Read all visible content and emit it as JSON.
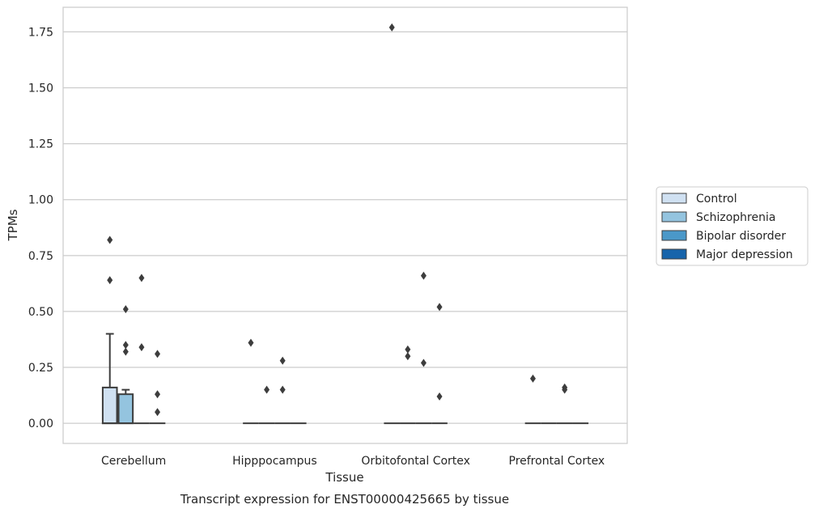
{
  "chart_data": {
    "type": "box",
    "title": "Transcript expression for ENST00000425665 by tissue",
    "xlabel": "Tissue",
    "ylabel": "TPMs",
    "ylim": [
      -0.09,
      1.86
    ],
    "yticks": [
      "0.00",
      "0.25",
      "0.50",
      "0.75",
      "1.00",
      "1.25",
      "1.50",
      "1.75"
    ],
    "grid": "horizontal",
    "legend_position": "right",
    "categories": [
      "Cerebellum",
      "Hipppocampus",
      "Orbitofontal Cortex",
      "Prefrontal Cortex"
    ],
    "series": [
      {
        "name": "Control",
        "color": "#d0e1f2",
        "boxes": [
          {
            "q1": 0,
            "median": 0,
            "q3": 0.16,
            "whislo": 0,
            "whishi": 0.4,
            "outliers": [
              0.82,
              0.64
            ]
          },
          {
            "q1": 0,
            "median": 0,
            "q3": 0,
            "whislo": 0,
            "whishi": 0,
            "outliers": [
              0.36
            ]
          },
          {
            "q1": 0,
            "median": 0,
            "q3": 0,
            "whislo": 0,
            "whishi": 0,
            "outliers": [
              1.77
            ]
          },
          {
            "q1": 0,
            "median": 0,
            "q3": 0,
            "whislo": 0,
            "whishi": 0,
            "outliers": [
              0.2
            ]
          }
        ]
      },
      {
        "name": "Schizophrenia",
        "color": "#94c4df",
        "boxes": [
          {
            "q1": 0,
            "median": 0,
            "q3": 0.13,
            "whislo": 0,
            "whishi": 0.15,
            "outliers": [
              0.51,
              0.35,
              0.32
            ]
          },
          {
            "q1": 0,
            "median": 0,
            "q3": 0,
            "whislo": 0,
            "whishi": 0,
            "outliers": [
              0.15
            ]
          },
          {
            "q1": 0,
            "median": 0,
            "q3": 0,
            "whislo": 0,
            "whishi": 0,
            "outliers": [
              0.33,
              0.3
            ]
          },
          {
            "q1": 0,
            "median": 0,
            "q3": 0,
            "whislo": 0,
            "whishi": 0,
            "outliers": []
          }
        ]
      },
      {
        "name": "Bipolar disorder",
        "color": "#4a98c9",
        "boxes": [
          {
            "q1": 0,
            "median": 0,
            "q3": 0,
            "whislo": 0,
            "whishi": 0,
            "outliers": [
              0.65,
              0.34
            ]
          },
          {
            "q1": 0,
            "median": 0,
            "q3": 0,
            "whislo": 0,
            "whishi": 0,
            "outliers": [
              0.28,
              0.15
            ]
          },
          {
            "q1": 0,
            "median": 0,
            "q3": 0,
            "whislo": 0,
            "whishi": 0,
            "outliers": [
              0.66,
              0.27
            ]
          },
          {
            "q1": 0,
            "median": 0,
            "q3": 0,
            "whislo": 0,
            "whishi": 0,
            "outliers": [
              0.16,
              0.15
            ]
          }
        ]
      },
      {
        "name": "Major depression",
        "color": "#1764ab",
        "boxes": [
          {
            "q1": 0,
            "median": 0,
            "q3": 0,
            "whislo": 0,
            "whishi": 0,
            "outliers": [
              0.31,
              0.13,
              0.05
            ]
          },
          {
            "q1": 0,
            "median": 0,
            "q3": 0,
            "whislo": 0,
            "whishi": 0,
            "outliers": []
          },
          {
            "q1": 0,
            "median": 0,
            "q3": 0,
            "whislo": 0,
            "whishi": 0,
            "outliers": [
              0.52,
              0.12
            ]
          },
          {
            "q1": 0,
            "median": 0,
            "q3": 0,
            "whislo": 0,
            "whishi": 0,
            "outliers": []
          }
        ]
      }
    ]
  }
}
